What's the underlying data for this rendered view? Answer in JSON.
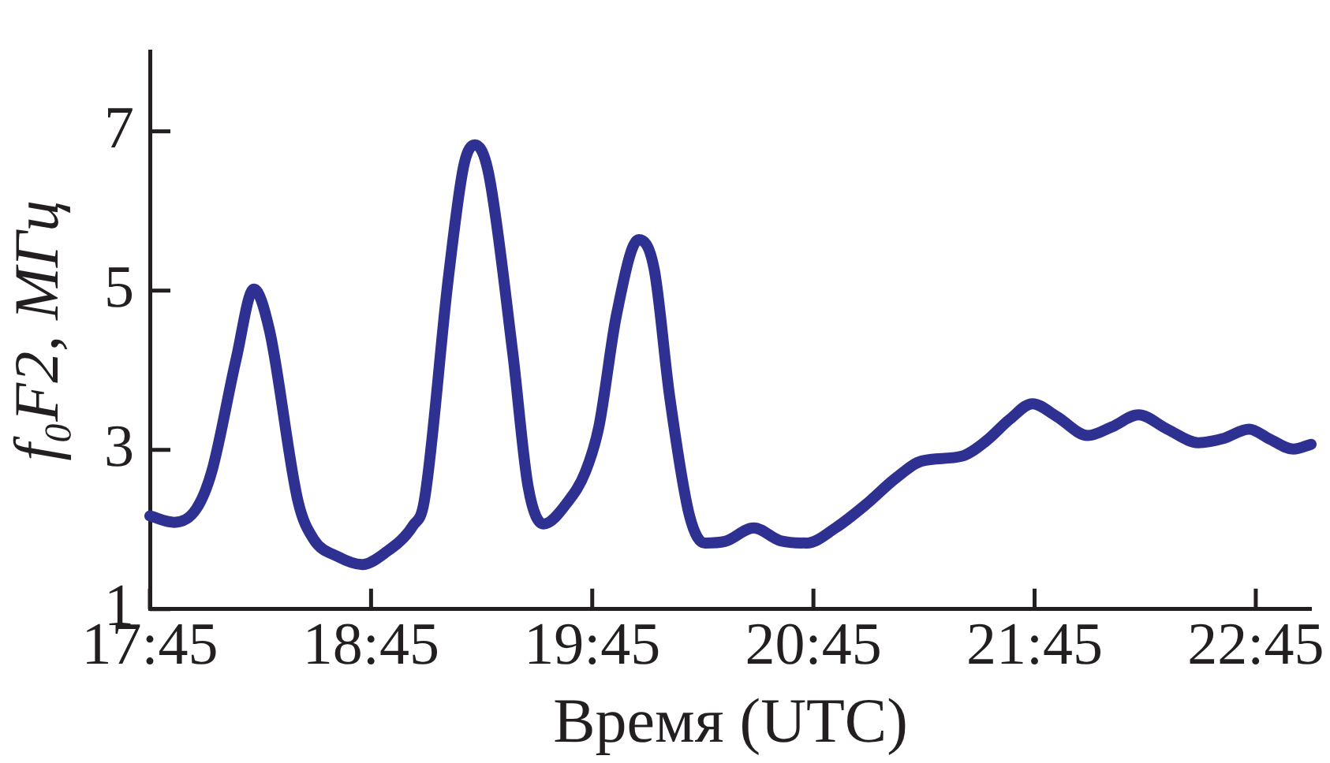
{
  "chart_data": {
    "type": "line",
    "xlabel": "Время (UTC)",
    "ylabel": "f₀F2, МГц",
    "series": [
      {
        "color": "#2e3192",
        "x": [
          17.75,
          17.86,
          17.96,
          18.03,
          18.14,
          18.22,
          18.29,
          18.42,
          18.49,
          18.6,
          18.71,
          18.81,
          18.94,
          18.99,
          19.1,
          19.17,
          19.22,
          19.28,
          19.39,
          19.46,
          19.53,
          19.64,
          19.72,
          19.78,
          19.86,
          19.96,
          20.03,
          20.1,
          20.19,
          20.26,
          20.35,
          20.48,
          20.6,
          20.72,
          20.85,
          20.99,
          21.12,
          21.24,
          21.42,
          21.53,
          21.64,
          21.74,
          21.85,
          21.99,
          22.1,
          22.22,
          22.35,
          22.49,
          22.6,
          22.72,
          22.81,
          22.92,
          23.0
        ],
        "values": [
          2.17,
          2.09,
          2.26,
          2.73,
          4.14,
          5.02,
          4.51,
          2.35,
          1.88,
          1.66,
          1.56,
          1.7,
          2.05,
          2.35,
          5.17,
          6.58,
          6.83,
          6.49,
          4.23,
          2.54,
          2.07,
          2.35,
          2.73,
          3.29,
          4.7,
          5.64,
          5.27,
          3.67,
          2.17,
          1.83,
          1.85,
          2.02,
          1.86,
          1.83,
          2.02,
          2.32,
          2.64,
          2.86,
          2.92,
          3.11,
          3.39,
          3.58,
          3.42,
          3.18,
          3.29,
          3.44,
          3.26,
          3.09,
          3.14,
          3.26,
          3.14,
          3.01,
          3.07
        ]
      }
    ],
    "xlim": [
      17.75,
      23.0
    ],
    "xticks": [
      {
        "value": 17.75,
        "label": "17:45"
      },
      {
        "value": 18.75,
        "label": "18:45"
      },
      {
        "value": 19.75,
        "label": "19:45"
      },
      {
        "value": 20.75,
        "label": "20:45"
      },
      {
        "value": 21.75,
        "label": "21:45"
      },
      {
        "value": 22.75,
        "label": "22:45"
      }
    ],
    "ylim": [
      1,
      8
    ],
    "yticks": [
      1,
      3,
      5,
      7
    ],
    "grid": false,
    "legend": false,
    "marker": "none",
    "line_style": "solid"
  }
}
